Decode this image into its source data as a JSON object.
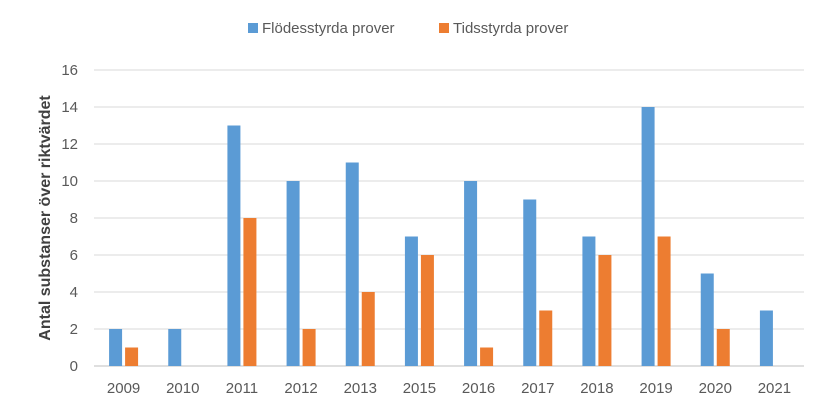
{
  "chart_data": {
    "type": "bar",
    "title": "",
    "xlabel": "",
    "ylabel": "Antal substanser över riktvärdet",
    "categories": [
      "2009",
      "2010",
      "2011",
      "2012",
      "2013",
      "2015",
      "2016",
      "2017",
      "2018",
      "2019",
      "2020",
      "2021"
    ],
    "series": [
      {
        "name": "Flödesstyrda prover",
        "color": "#5b9bd5",
        "values": [
          2,
          2,
          13,
          10,
          11,
          7,
          10,
          9,
          7,
          14,
          5,
          3
        ]
      },
      {
        "name": "Tidsstyrda prover",
        "color": "#ed7d31",
        "values": [
          1,
          0,
          8,
          2,
          4,
          6,
          1,
          3,
          6,
          7,
          2,
          0
        ]
      }
    ],
    "ylim": [
      0,
      16
    ],
    "yticks": [
      0,
      2,
      4,
      6,
      8,
      10,
      12,
      14,
      16
    ],
    "grid": true,
    "legend_position": "top-center"
  }
}
